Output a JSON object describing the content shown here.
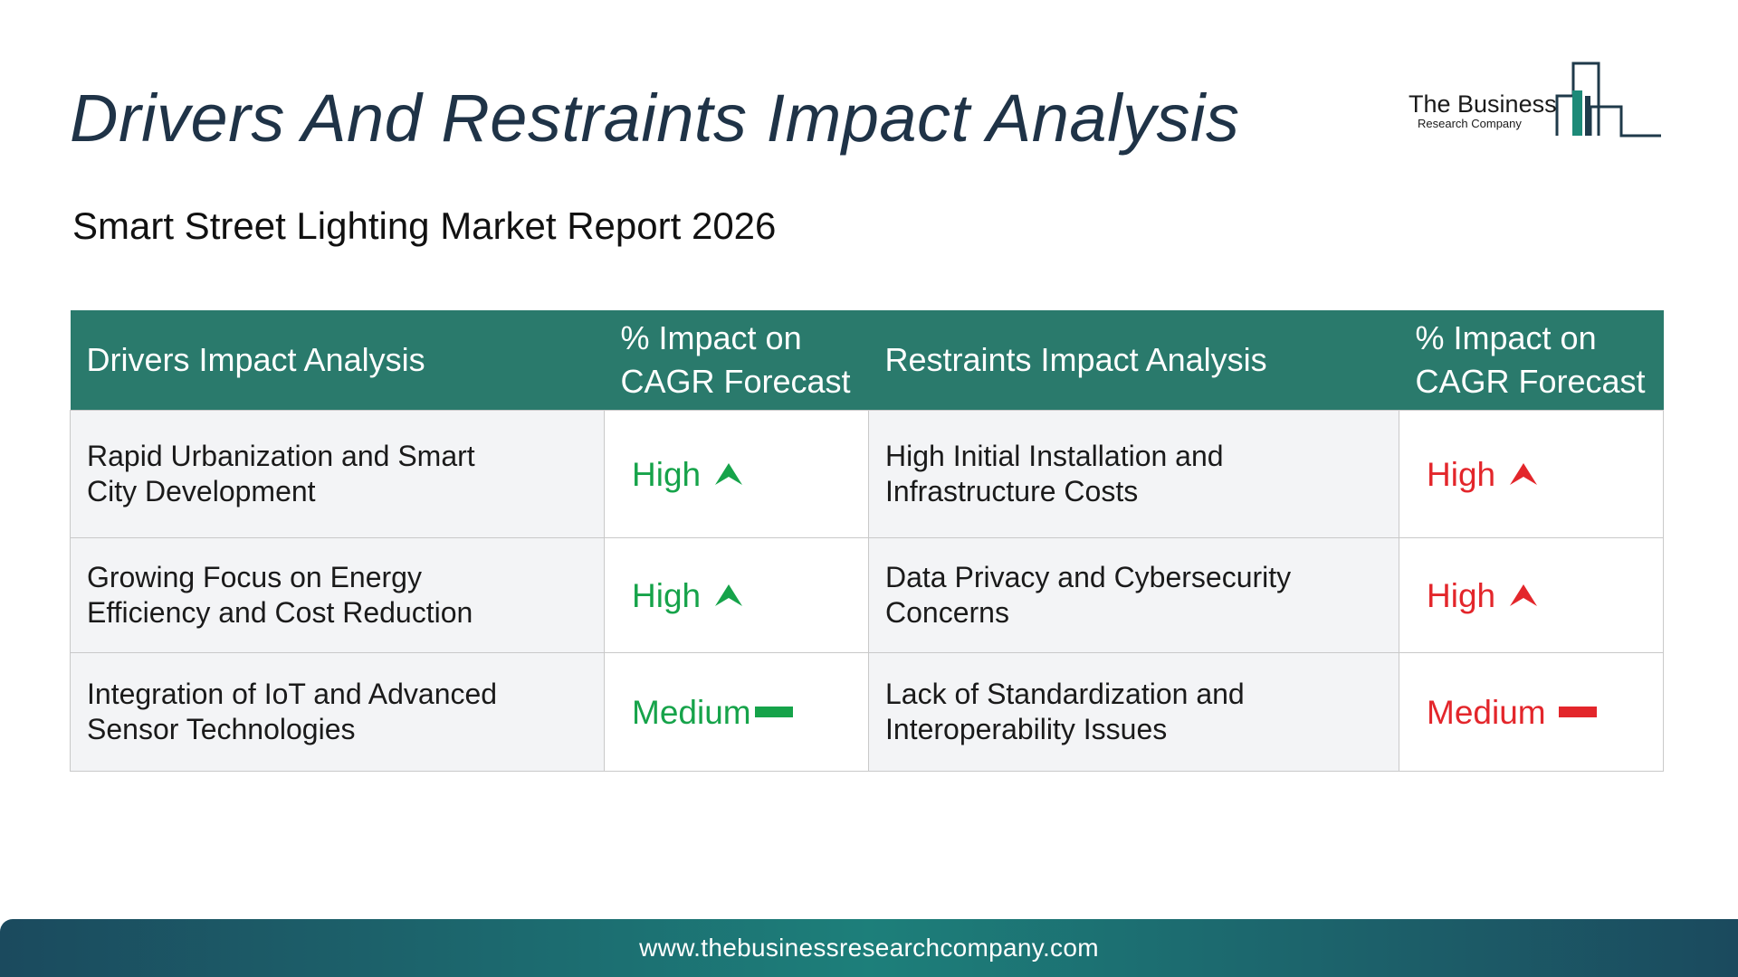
{
  "header": {
    "title": "Drivers And Restraints Impact Analysis",
    "subtitle": "Smart Street Lighting Market Report 2026"
  },
  "logo": {
    "line1": "The Business",
    "line2": "Research Company",
    "color": "#1d7f6e"
  },
  "table": {
    "headers": {
      "drivers": "Drivers Impact Analysis",
      "drivers_impact_line1": "% Impact on",
      "drivers_impact_line2": "CAGR Forecast",
      "restraints": "Restraints Impact Analysis",
      "restraints_impact_line1": "% Impact on",
      "restraints_impact_line2": "CAGR Forecast"
    },
    "header_color": "#2a7a6c",
    "rows": [
      {
        "driver": "Rapid Urbanization and Smart City Development",
        "driver_impact": "High",
        "driver_icon": "arrow-up-icon",
        "restraint": "High Initial Installation and Infrastructure Costs",
        "restraint_impact": "High",
        "restraint_icon": "arrow-up-icon"
      },
      {
        "driver": "Growing Focus on Energy Efficiency and Cost Reduction",
        "driver_impact": "High",
        "driver_icon": "arrow-up-icon",
        "restraint": "Data Privacy and Cybersecurity Concerns",
        "restraint_impact": "High",
        "restraint_icon": "arrow-up-icon"
      },
      {
        "driver": "Integration of IoT and Advanced Sensor Technologies",
        "driver_impact": "Medium",
        "driver_icon": "dash-icon",
        "restraint": "Lack of Standardization and Interoperability Issues",
        "restraint_impact": "Medium",
        "restraint_icon": "dash-icon"
      }
    ],
    "driver_color": "#16a34a",
    "restraint_color": "#e3262b"
  },
  "footer": {
    "url": "www.thebusinessresearchcompany.com"
  }
}
